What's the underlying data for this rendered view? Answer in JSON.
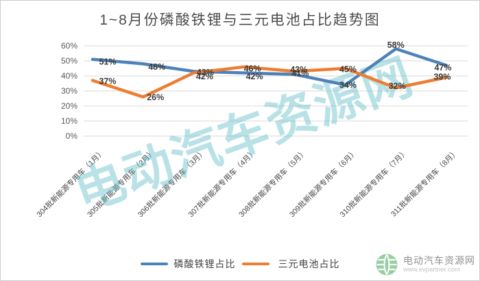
{
  "watermark": "电动汽车资源网",
  "chart_data": {
    "type": "line",
    "title": "1~8月份磷酸铁锂与三元电池占比趋势图",
    "xlabel": "",
    "ylabel": "",
    "categories": [
      "304批新能源专用车（1月）",
      "305批新能源专用车（2月）",
      "306批新能源专用车（3月）",
      "307批新能源专用车（4月）",
      "308批新能源专用车（5月）",
      "309批新能源专用车（6月）",
      "310批新能源专用车（7月）",
      "311批新能源专用车（8月）"
    ],
    "series": [
      {
        "name": "磷酸铁锂占比",
        "color": "#4d82b8",
        "values": [
          51,
          48,
          43,
          42,
          41,
          34,
          58,
          47
        ]
      },
      {
        "name": "三元电池占比",
        "color": "#ed7d31",
        "values": [
          37,
          26,
          42,
          46,
          43,
          45,
          32,
          39
        ]
      }
    ],
    "yticks": [
      "0%",
      "10%",
      "20%",
      "30%",
      "40%",
      "50%",
      "60%"
    ],
    "ylim": [
      0,
      60
    ],
    "grid": true,
    "legend_position": "bottom",
    "gridline_color": "#d9d9d9"
  },
  "icons": {
    "logo": "evpartner-coin-icon"
  },
  "footer_logo": {
    "site_name": "电动汽车资源网",
    "site_url": "www.evpartner.com"
  }
}
